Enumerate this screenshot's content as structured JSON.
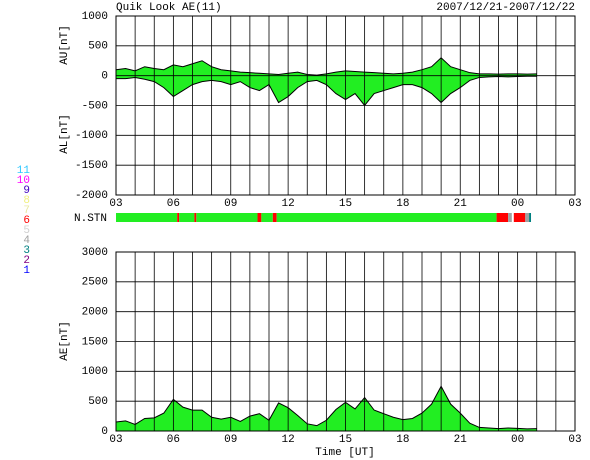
{
  "chart_data": [
    {
      "type": "band",
      "title": "Quik Look AE(11)",
      "subtitle": "2007/12/21-2007/12/22",
      "ylabels": [
        "AU[nT]",
        "AL[nT]"
      ],
      "x": [
        3,
        3.5,
        4,
        4.5,
        5,
        5.5,
        6,
        6.5,
        7,
        7.5,
        8,
        8.5,
        9,
        9.5,
        10,
        10.5,
        11,
        11.5,
        12,
        12.5,
        13,
        13.5,
        14,
        14.5,
        15,
        15.5,
        16,
        16.5,
        17,
        17.5,
        18,
        18.5,
        19,
        19.5,
        20,
        20.5,
        21,
        21.5,
        22,
        22.5,
        23,
        23.5,
        24,
        24.5,
        25
      ],
      "series": [
        {
          "color": "#22ee22",
          "values": [
            100,
            120,
            80,
            150,
            120,
            100,
            180,
            150,
            200,
            250,
            150,
            100,
            80,
            60,
            50,
            40,
            30,
            20,
            40,
            60,
            20,
            10,
            30,
            60,
            80,
            70,
            60,
            50,
            40,
            30,
            40,
            60,
            100,
            150,
            300,
            150,
            100,
            50,
            30,
            30,
            25,
            30,
            30,
            25,
            30
          ]
        },
        {
          "color": "#22ee22",
          "values": [
            -50,
            -50,
            -30,
            -60,
            -100,
            -200,
            -350,
            -250,
            -150,
            -100,
            -80,
            -100,
            -150,
            -100,
            -200,
            -250,
            -150,
            -450,
            -350,
            -200,
            -100,
            -80,
            -150,
            -300,
            -400,
            -300,
            -500,
            -300,
            -250,
            -200,
            -150,
            -150,
            -200,
            -300,
            -450,
            -300,
            -200,
            -80,
            -30,
            -20,
            -15,
            -20,
            -15,
            -10,
            -10
          ]
        }
      ],
      "xlim": [
        3,
        27
      ],
      "xticks": [
        {
          "value": 3,
          "label": "03"
        },
        {
          "value": 6,
          "label": "06"
        },
        {
          "value": 9,
          "label": "09"
        },
        12,
        15,
        18,
        21,
        {
          "value": 24,
          "label": "00"
        },
        {
          "value": 27,
          "label": "03"
        }
      ],
      "xminor": [
        4,
        5,
        7,
        8,
        10,
        11,
        13,
        14,
        16,
        17,
        19,
        20,
        22,
        23,
        25,
        26
      ],
      "ylim": [
        -2000,
        1000
      ],
      "yticks": [
        -2000,
        -1500,
        -1000,
        -500,
        0,
        500,
        1000
      ],
      "grid": true
    },
    {
      "type": "area",
      "ylabel": "AE[nT]",
      "xlabel": "Time [UT]",
      "x": [
        3,
        3.5,
        4,
        4.5,
        5,
        5.5,
        6,
        6.5,
        7,
        7.5,
        8,
        8.5,
        9,
        9.5,
        10,
        10.5,
        11,
        11.5,
        12,
        12.5,
        13,
        13.5,
        14,
        14.5,
        15,
        15.5,
        16,
        16.5,
        17,
        17.5,
        18,
        18.5,
        19,
        19.5,
        20,
        20.5,
        21,
        21.5,
        22,
        22.5,
        23,
        23.5,
        24,
        24.5,
        25
      ],
      "color": "#22ee22",
      "values": [
        150,
        170,
        110,
        210,
        220,
        300,
        530,
        400,
        350,
        350,
        230,
        200,
        230,
        160,
        250,
        290,
        180,
        470,
        390,
        260,
        120,
        90,
        180,
        360,
        480,
        370,
        560,
        350,
        290,
        230,
        190,
        210,
        300,
        450,
        750,
        450,
        300,
        130,
        60,
        50,
        40,
        50,
        45,
        35,
        40
      ],
      "xlim": [
        3,
        27
      ],
      "xticks": [
        {
          "value": 3,
          "label": "03"
        },
        {
          "value": 6,
          "label": "06"
        },
        {
          "value": 9,
          "label": "09"
        },
        12,
        15,
        18,
        21,
        {
          "value": 24,
          "label": "00"
        },
        {
          "value": 27,
          "label": "03"
        }
      ],
      "xminor": [
        4,
        5,
        7,
        8,
        10,
        11,
        13,
        14,
        16,
        17,
        19,
        20,
        22,
        23,
        25,
        26
      ],
      "ylim": [
        0,
        3000
      ],
      "yticks": [
        0,
        500,
        1000,
        1500,
        2000,
        2500,
        3000
      ],
      "grid": true
    }
  ],
  "station_bar": {
    "label": "N.STN",
    "segments": [
      {
        "start": 3,
        "end": 6.2,
        "color": "#22ee22"
      },
      {
        "start": 6.2,
        "end": 6.3,
        "color": "#ff0000"
      },
      {
        "start": 6.3,
        "end": 7.1,
        "color": "#22ee22"
      },
      {
        "start": 7.1,
        "end": 7.2,
        "color": "#ff0000"
      },
      {
        "start": 7.2,
        "end": 10.4,
        "color": "#22ee22"
      },
      {
        "start": 10.4,
        "end": 10.6,
        "color": "#ff0000"
      },
      {
        "start": 10.6,
        "end": 11.2,
        "color": "#22ee22"
      },
      {
        "start": 11.2,
        "end": 11.4,
        "color": "#ff0000"
      },
      {
        "start": 11.4,
        "end": 22.9,
        "color": "#22ee22"
      },
      {
        "start": 22.9,
        "end": 23.5,
        "color": "#ff0000"
      },
      {
        "start": 23.5,
        "end": 23.7,
        "color": "#a0a0a0"
      },
      {
        "start": 23.7,
        "end": 23.8,
        "color": "#ffffff"
      },
      {
        "start": 23.8,
        "end": 24.4,
        "color": "#ff0000"
      },
      {
        "start": 24.4,
        "end": 24.6,
        "color": "#a0a0a0"
      },
      {
        "start": 24.6,
        "end": 24.7,
        "color": "#008080"
      }
    ]
  },
  "station_legend": [
    {
      "label": "11",
      "color": "#30c8ff"
    },
    {
      "label": "10",
      "color": "#ff00ff"
    },
    {
      "label": "9",
      "color": "#4000c0"
    },
    {
      "label": "8",
      "color": "#f0f080"
    },
    {
      "label": "7",
      "color": "#e8e8a0"
    },
    {
      "label": "6",
      "color": "#ff0000"
    },
    {
      "label": "5",
      "color": "#d0d0d0"
    },
    {
      "label": "4",
      "color": "#a0a0a0"
    },
    {
      "label": "3",
      "color": "#008080"
    },
    {
      "label": "2",
      "color": "#800080"
    },
    {
      "label": "1",
      "color": "#0000ff"
    }
  ]
}
